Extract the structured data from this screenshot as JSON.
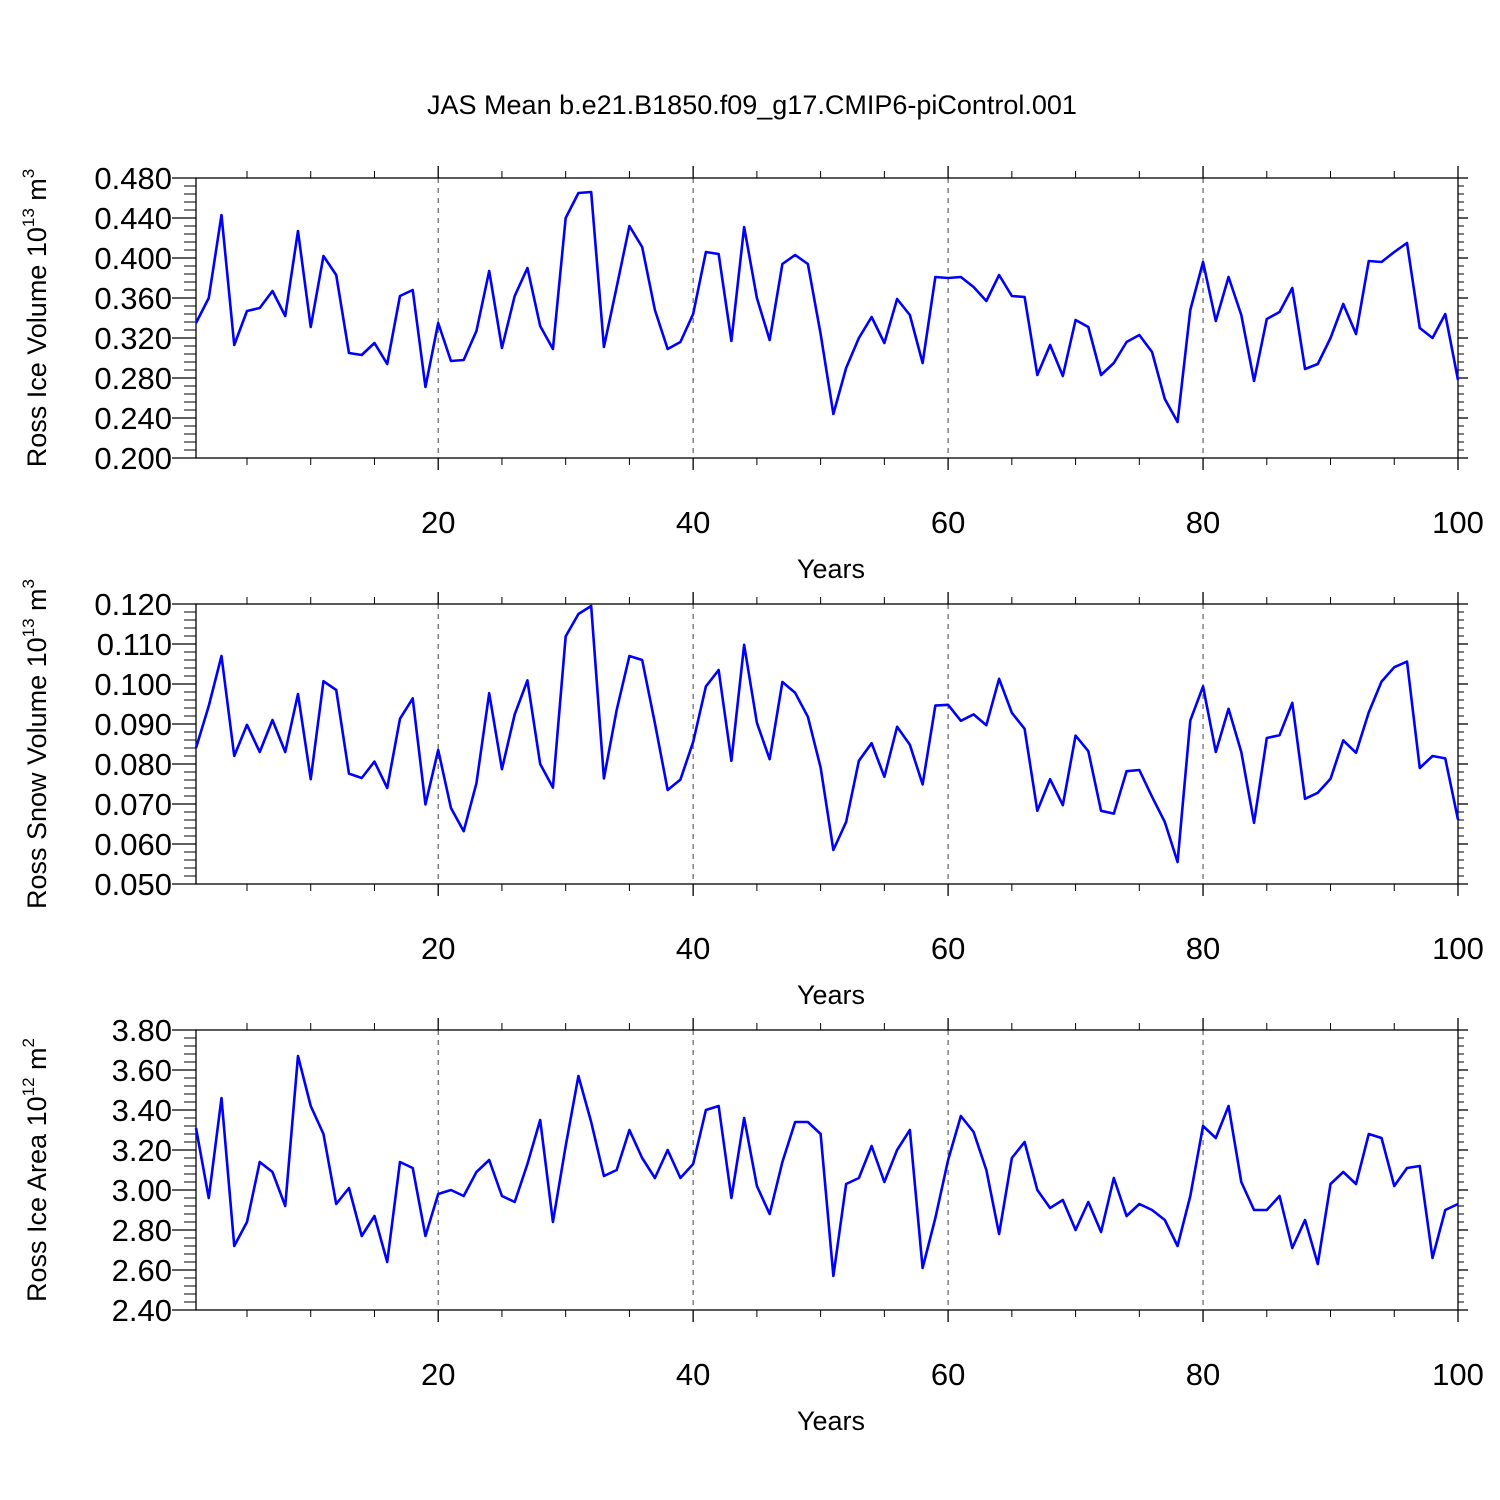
{
  "figure": {
    "title": "JAS Mean b.e21.B1850.f09_g17.CMIP6-piControl.001"
  },
  "chart_data": [
    {
      "type": "line",
      "ylabel": {
        "main": "Ross Ice Volume 10",
        "sup": "13",
        "tail": " m",
        "sup2": "3"
      },
      "xlabel": "Years",
      "xlim": [
        1,
        100
      ],
      "ylim": [
        0.2,
        0.48
      ],
      "xticks": [
        20,
        40,
        60,
        80,
        100
      ],
      "xticklabels": [
        "20",
        "40",
        "60",
        "80",
        "100"
      ],
      "yticks": [
        0.2,
        0.24,
        0.28,
        0.32,
        0.36,
        0.4,
        0.44,
        0.48
      ],
      "yticklabels": [
        "0.200",
        "0.240",
        "0.280",
        "0.320",
        "0.360",
        "0.400",
        "0.440",
        "0.480"
      ],
      "ymajor_step": 0.04,
      "yminor_per_major": 5,
      "grid": "vertical dashed at x ticks",
      "color": "#0000ff",
      "x_start": 1,
      "values": [
        0.335,
        0.36,
        0.443,
        0.313,
        0.347,
        0.35,
        0.367,
        0.342,
        0.427,
        0.331,
        0.402,
        0.383,
        0.305,
        0.303,
        0.315,
        0.294,
        0.362,
        0.368,
        0.271,
        0.335,
        0.297,
        0.298,
        0.327,
        0.387,
        0.31,
        0.362,
        0.39,
        0.332,
        0.309,
        0.44,
        0.465,
        0.466,
        0.311,
        0.371,
        0.432,
        0.411,
        0.348,
        0.309,
        0.316,
        0.344,
        0.406,
        0.404,
        0.317,
        0.431,
        0.36,
        0.318,
        0.394,
        0.403,
        0.394,
        0.324,
        0.244,
        0.29,
        0.32,
        0.341,
        0.315,
        0.359,
        0.343,
        0.295,
        0.381,
        0.38,
        0.381,
        0.371,
        0.357,
        0.383,
        0.362,
        0.361,
        0.283,
        0.313,
        0.282,
        0.338,
        0.331,
        0.283,
        0.295,
        0.316,
        0.323,
        0.306,
        0.259,
        0.236,
        0.348,
        0.396,
        0.337,
        0.381,
        0.343,
        0.277,
        0.339,
        0.346,
        0.37,
        0.289,
        0.294,
        0.32,
        0.354,
        0.324,
        0.397,
        0.396,
        0.406,
        0.415,
        0.33,
        0.32,
        0.344,
        0.278
      ]
    },
    {
      "type": "line",
      "ylabel": {
        "main": "Ross Snow Volume 10",
        "sup": "13",
        "tail": " m",
        "sup2": "3"
      },
      "xlabel": "Years",
      "xlim": [
        1,
        100
      ],
      "ylim": [
        0.05,
        0.12
      ],
      "xticks": [
        20,
        40,
        60,
        80,
        100
      ],
      "xticklabels": [
        "20",
        "40",
        "60",
        "80",
        "100"
      ],
      "yticks": [
        0.05,
        0.06,
        0.07,
        0.08,
        0.09,
        0.1,
        0.11,
        0.12
      ],
      "yticklabels": [
        "0.050",
        "0.060",
        "0.070",
        "0.080",
        "0.090",
        "0.100",
        "0.110",
        "0.120"
      ],
      "ymajor_step": 0.01,
      "yminor_per_major": 5,
      "grid": "vertical dashed at x ticks",
      "color": "#0000ff",
      "x_start": 1,
      "values": [
        0.084,
        0.0945,
        0.107,
        0.082,
        0.0898,
        0.083,
        0.091,
        0.083,
        0.0975,
        0.0762,
        0.1007,
        0.0985,
        0.0776,
        0.0765,
        0.0806,
        0.074,
        0.0913,
        0.0964,
        0.0699,
        0.0835,
        0.069,
        0.0632,
        0.0752,
        0.0977,
        0.0787,
        0.0924,
        0.1009,
        0.08,
        0.0741,
        0.1119,
        0.1175,
        0.1195,
        0.0764,
        0.0935,
        0.107,
        0.106,
        0.0902,
        0.0735,
        0.0761,
        0.0855,
        0.0994,
        0.1035,
        0.0808,
        0.1098,
        0.0903,
        0.0812,
        0.1005,
        0.0978,
        0.0918,
        0.0791,
        0.0585,
        0.0655,
        0.0808,
        0.0852,
        0.0768,
        0.0893,
        0.0848,
        0.0749,
        0.0946,
        0.0948,
        0.0908,
        0.0924,
        0.0897,
        0.1013,
        0.0928,
        0.0888,
        0.0683,
        0.0762,
        0.0697,
        0.0871,
        0.0832,
        0.0683,
        0.0676,
        0.0782,
        0.0785,
        0.0718,
        0.0655,
        0.0555,
        0.0909,
        0.0994,
        0.083,
        0.0938,
        0.083,
        0.0653,
        0.0865,
        0.0872,
        0.0953,
        0.0713,
        0.0728,
        0.0763,
        0.0859,
        0.0828,
        0.0929,
        0.1006,
        0.1042,
        0.1056,
        0.079,
        0.082,
        0.0814,
        0.0661
      ]
    },
    {
      "type": "line",
      "ylabel": {
        "main": "Ross Ice Area 10",
        "sup": "12",
        "tail": " m",
        "sup2": "2"
      },
      "xlabel": "Years",
      "xlim": [
        1,
        100
      ],
      "ylim": [
        2.4,
        3.8
      ],
      "xticks": [
        20,
        40,
        60,
        80,
        100
      ],
      "xticklabels": [
        "20",
        "40",
        "60",
        "80",
        "100"
      ],
      "yticks": [
        2.4,
        2.6,
        2.8,
        3.0,
        3.2,
        3.4,
        3.6,
        3.8
      ],
      "yticklabels": [
        "2.40",
        "2.60",
        "2.80",
        "3.00",
        "3.20",
        "3.40",
        "3.60",
        "3.80"
      ],
      "ymajor_step": 0.2,
      "yminor_per_major": 5,
      "grid": "vertical dashed at x ticks",
      "color": "#0000ff",
      "x_start": 1,
      "values": [
        3.31,
        2.96,
        3.46,
        2.72,
        2.84,
        3.14,
        3.09,
        2.92,
        3.67,
        3.42,
        3.28,
        2.93,
        3.01,
        2.77,
        2.87,
        2.64,
        3.14,
        3.11,
        2.77,
        2.98,
        3.0,
        2.97,
        3.09,
        3.15,
        2.97,
        2.94,
        3.13,
        3.35,
        2.84,
        3.22,
        3.57,
        3.34,
        3.07,
        3.1,
        3.3,
        3.16,
        3.06,
        3.2,
        3.06,
        3.13,
        3.4,
        3.42,
        2.96,
        3.36,
        3.02,
        2.88,
        3.14,
        3.34,
        3.34,
        3.28,
        2.57,
        3.03,
        3.06,
        3.22,
        3.04,
        3.2,
        3.3,
        2.61,
        2.86,
        3.15,
        3.37,
        3.29,
        3.1,
        2.78,
        3.16,
        3.24,
        3.0,
        2.91,
        2.95,
        2.8,
        2.94,
        2.79,
        3.06,
        2.87,
        2.93,
        2.9,
        2.85,
        2.72,
        2.97,
        3.32,
        3.26,
        3.42,
        3.04,
        2.9,
        2.9,
        2.97,
        2.71,
        2.85,
        2.63,
        3.03,
        3.09,
        3.03,
        3.28,
        3.26,
        3.02,
        3.11,
        3.12,
        2.66,
        2.9,
        2.93
      ]
    }
  ]
}
